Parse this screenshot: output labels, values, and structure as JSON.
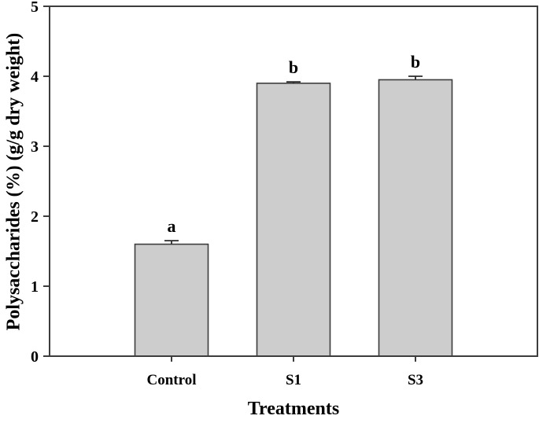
{
  "chart_data": {
    "type": "bar",
    "title": "",
    "xlabel": "Treatments",
    "ylabel": "Polysaccharides (%) (g/g dry weight)",
    "categories": [
      "Control",
      "S1",
      "S3"
    ],
    "values": [
      1.6,
      3.9,
      3.95
    ],
    "errors": [
      0.05,
      0.02,
      0.05
    ],
    "sig_letters": [
      "a",
      "b",
      "b"
    ],
    "ylim": [
      0,
      5
    ],
    "yticks": [
      0,
      1,
      2,
      3,
      4,
      5
    ],
    "grid": false,
    "legend": "none",
    "bar_color": "#cdcdcd",
    "bar_edge_color": "#3d3d3d",
    "axis_color": "#3d3d3d",
    "error_bar_color": "#2b2b2b",
    "text_color": "#000000",
    "background": "#ffffff"
  }
}
